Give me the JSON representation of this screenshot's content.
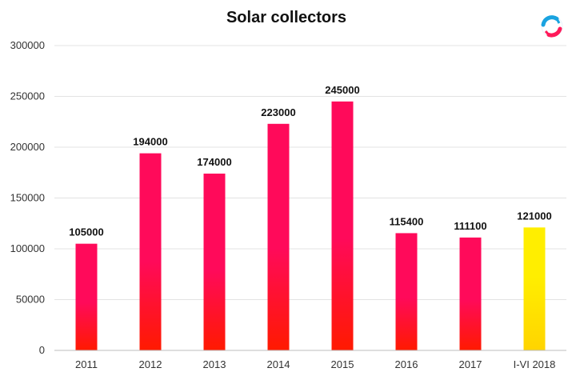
{
  "logo_icon": "circular-arrows-logo-icon",
  "chart_data": {
    "type": "bar",
    "title": "Solar collectors",
    "xlabel": "",
    "ylabel": "",
    "ylim": [
      0,
      300000
    ],
    "yticks": [
      0,
      50000,
      100000,
      150000,
      200000,
      250000,
      300000
    ],
    "ytick_labels": [
      "0",
      "50000",
      "100000",
      "150000",
      "200000",
      "250000",
      "300000"
    ],
    "grid": true,
    "legend": "none",
    "categories": [
      "2011",
      "2012",
      "2013",
      "2014",
      "2015",
      "2016",
      "2017",
      "I-VI 2018"
    ],
    "values": [
      105000,
      194000,
      174000,
      223000,
      245000,
      115400,
      111100,
      121000
    ],
    "value_labels": [
      "105000",
      "194000",
      "174000",
      "223000",
      "245000",
      "115400",
      "111100",
      "121000"
    ],
    "colors": {
      "bar_top": "#ff0a5a",
      "bar_bottom": "#ff1a00",
      "highlight_top": "#ffee00",
      "highlight_bottom": "#ffd400"
    },
    "highlight_category": "I-VI 2018"
  }
}
